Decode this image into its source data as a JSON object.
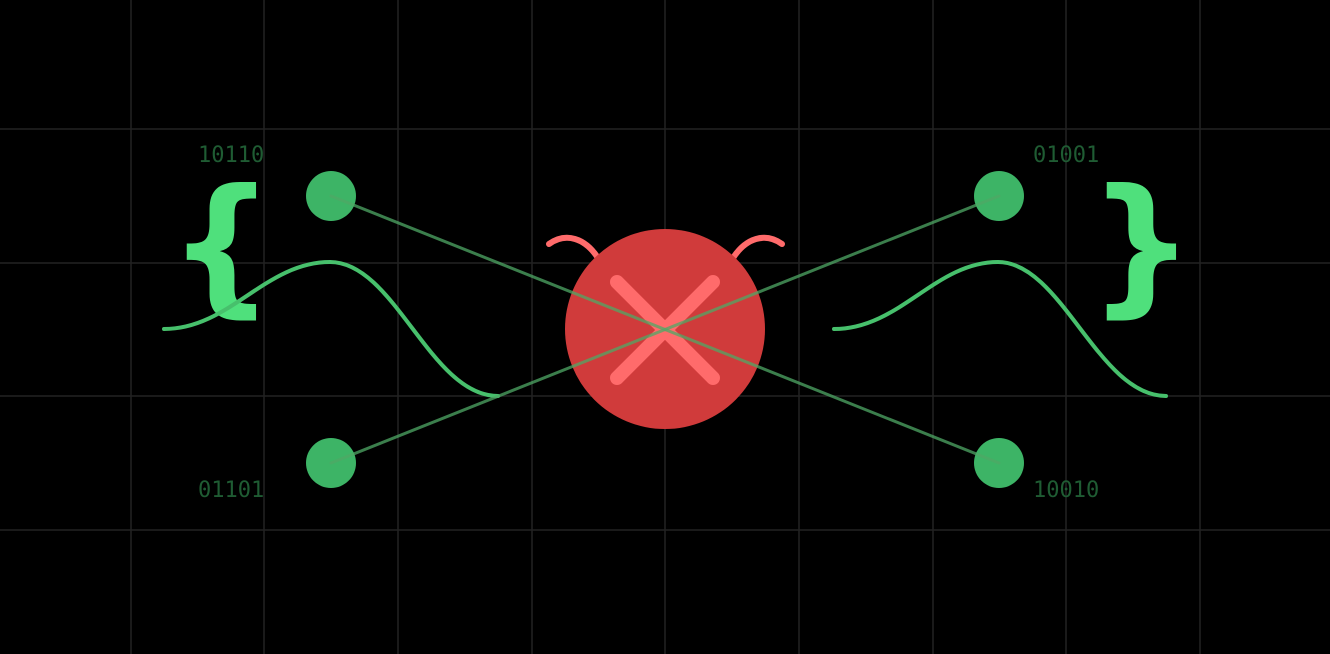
{
  "colors": {
    "background": "#000000",
    "grid": "#222222",
    "node": "#3db466",
    "link": "#4fa866",
    "wave": "#47c06c",
    "brace": "#4fe07c",
    "code_text": "#1f5c33",
    "bug_body": "#d03b3b",
    "bug_accent": "#ff6b6b"
  },
  "labels": {
    "top_left": "10110",
    "top_right": "01001",
    "bottom_left": "01101",
    "bottom_right": "10010"
  },
  "braces": {
    "left": "{",
    "right": "}"
  },
  "icons": {
    "center": "bug-icon",
    "center_mark": "close-icon"
  }
}
